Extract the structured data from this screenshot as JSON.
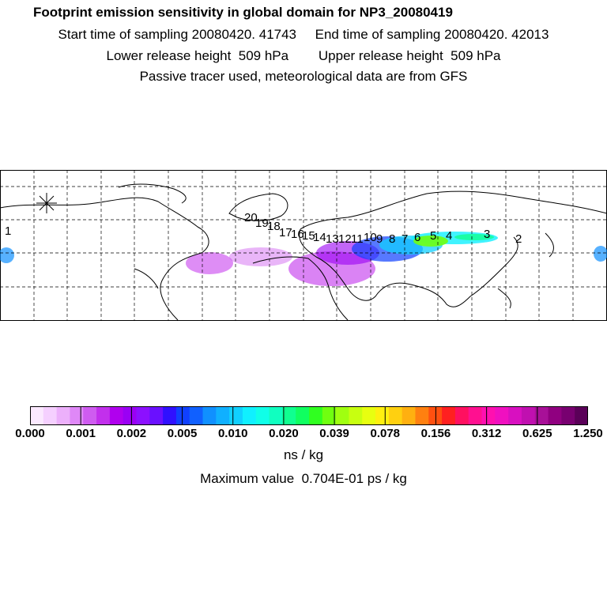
{
  "header": {
    "title": "Footprint emission sensitivity in global domain for NP3_20080419",
    "line1": "Start time of sampling 20080420. 41743     End time of sampling 20080420. 42013",
    "line2": "Lower release height  509 hPa        Upper release height  509 hPa",
    "line3": "Passive tracer used, meteorological data are from GFS"
  },
  "map": {
    "trajectory_labels": [
      "1",
      "20",
      "19",
      "18",
      "17",
      "16",
      "15",
      "14",
      "13",
      "12",
      "11",
      "10",
      "9",
      "8",
      "7",
      "6",
      "5",
      "4",
      "3",
      "2"
    ],
    "release_marker_icon": "asterisk-star-icon"
  },
  "colorbar": {
    "tick_labels": [
      "0.000",
      "0.001",
      "0.002",
      "0.005",
      "0.010",
      "0.020",
      "0.039",
      "0.078",
      "0.156",
      "0.312",
      "0.625",
      "1.250"
    ],
    "colors": [
      "#fbe9ff",
      "#f5d0ff",
      "#ecb0fb",
      "#df88f7",
      "#cf5cf0",
      "#c230ec",
      "#b000ee",
      "#9a00f4",
      "#8c10ff",
      "#6a10ff",
      "#3010ff",
      "#1040ff",
      "#1060ff",
      "#1090ff",
      "#10b0ff",
      "#10d0ff",
      "#10f0ff",
      "#10ffe8",
      "#10ffc0",
      "#10ff90",
      "#10ff60",
      "#30ff20",
      "#70ff10",
      "#a0ff10",
      "#c8ff10",
      "#e8ff10",
      "#fff010",
      "#ffd010",
      "#ffb010",
      "#ff8010",
      "#ff5010",
      "#ff2020",
      "#ff1060",
      "#ff1090",
      "#ff10b0",
      "#f010c0",
      "#d810c0",
      "#c010b0",
      "#a81098",
      "#900080",
      "#780070",
      "#5a0058"
    ]
  },
  "units": "ns / kg",
  "max_value_text": "Maximum value  0.704E-01 ps / kg"
}
